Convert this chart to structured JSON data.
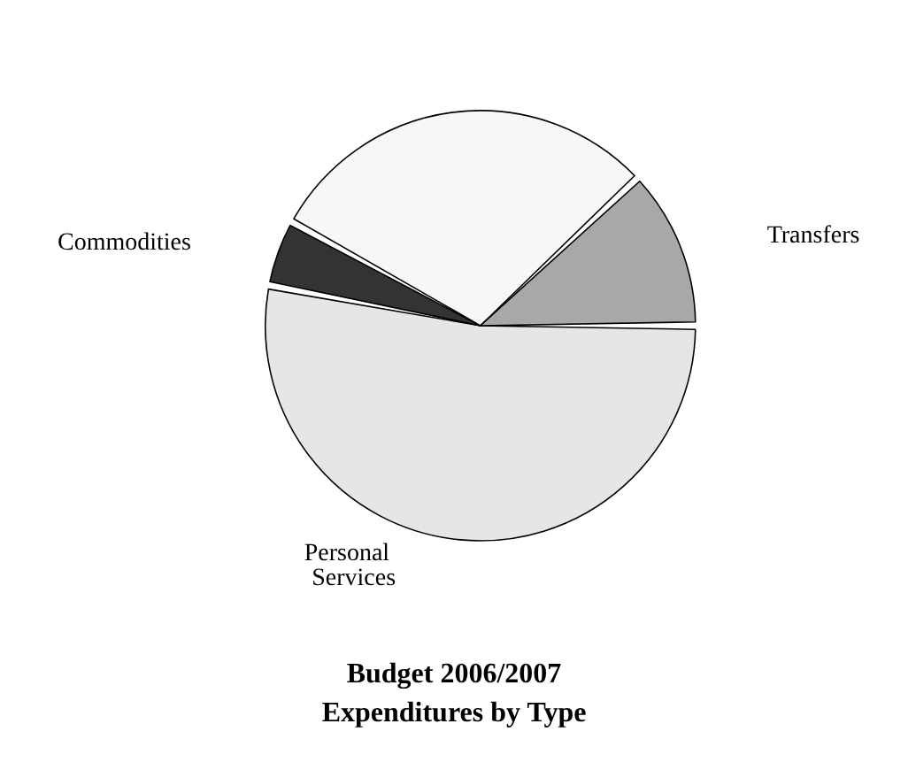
{
  "chart_data": {
    "type": "pie",
    "title": "Budget 2006/2007\nExpenditures by Type",
    "categories": [
      "Personal Services",
      "Commodities",
      null,
      "Transfers"
    ],
    "values": [
      53,
      5,
      30,
      12
    ],
    "colors": [
      "#e6e6e6",
      "#333333",
      "#f7f7f7",
      "#a8a8a8"
    ],
    "legend": false
  }
}
